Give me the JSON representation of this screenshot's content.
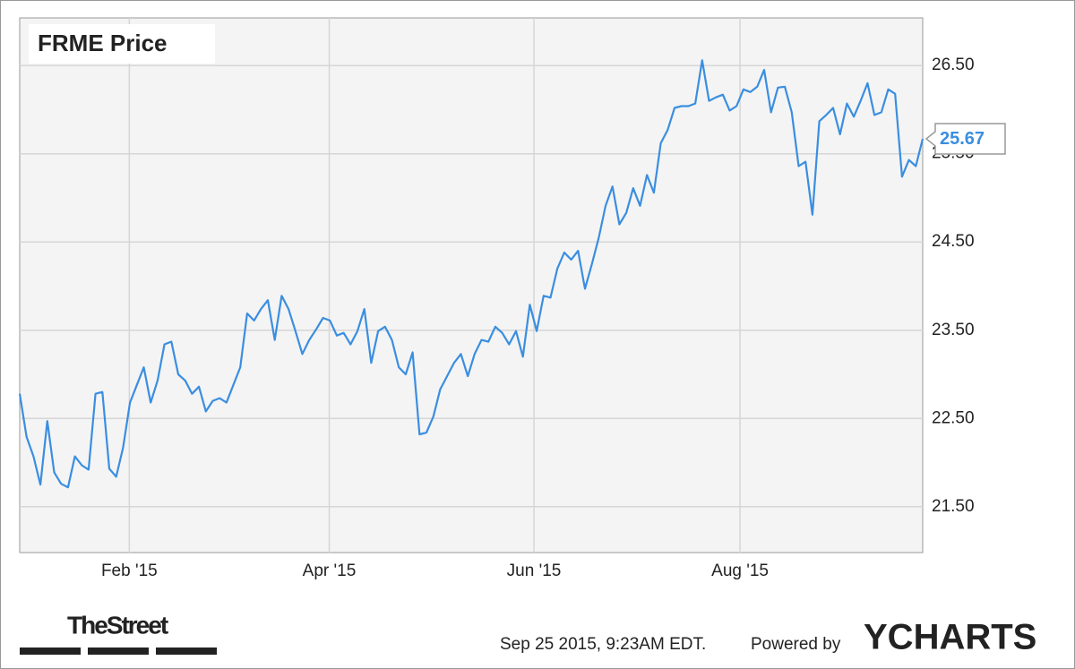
{
  "chart_data": {
    "type": "line",
    "title": "FRME Price",
    "color": "#3a8ee0",
    "grid": true,
    "values": [
      22.78,
      22.29,
      22.07,
      21.75,
      22.47,
      21.89,
      21.76,
      21.72,
      22.07,
      21.97,
      21.92,
      22.78,
      22.8,
      21.93,
      21.84,
      22.17,
      22.68,
      22.88,
      23.08,
      22.68,
      22.93,
      23.34,
      23.37,
      23.0,
      22.93,
      22.78,
      22.86,
      22.58,
      22.7,
      22.73,
      22.68,
      22.88,
      23.08,
      23.69,
      23.61,
      23.74,
      23.84,
      23.39,
      23.89,
      23.74,
      23.49,
      23.23,
      23.39,
      23.51,
      23.64,
      23.61,
      23.44,
      23.47,
      23.34,
      23.49,
      23.74,
      23.13,
      23.49,
      23.54,
      23.39,
      23.08,
      23.0,
      23.25,
      22.32,
      22.34,
      22.52,
      22.83,
      22.98,
      23.13,
      23.23,
      22.98,
      23.23,
      23.39,
      23.37,
      23.54,
      23.47,
      23.34,
      23.49,
      23.2,
      23.79,
      23.49,
      23.89,
      23.87,
      24.2,
      24.38,
      24.3,
      24.4,
      23.97,
      24.25,
      24.55,
      24.91,
      25.13,
      24.7,
      24.83,
      25.11,
      24.91,
      25.26,
      25.06,
      25.62,
      25.77,
      26.02,
      26.04,
      26.04,
      26.07,
      26.56,
      26.1,
      26.14,
      26.17,
      25.99,
      26.04,
      26.23,
      26.2,
      26.26,
      26.45,
      25.97,
      26.25,
      26.26,
      25.97,
      25.36,
      25.41,
      24.81,
      25.87,
      25.94,
      26.02,
      25.72,
      26.07,
      25.92,
      26.1,
      26.3,
      25.94,
      25.97,
      26.23,
      26.18,
      25.24,
      25.43,
      25.36,
      25.67
    ],
    "xlim": [
      0,
      131
    ],
    "xticks": [
      {
        "value": 15.9,
        "label": "Feb '15"
      },
      {
        "value": 44.9,
        "label": "Apr '15"
      },
      {
        "value": 74.6,
        "label": "Jun '15"
      },
      {
        "value": 104.5,
        "label": "Aug '15"
      }
    ],
    "ylim": [
      20.98,
      27.04
    ],
    "yticks": [
      {
        "value": 21.5,
        "label": "21.50"
      },
      {
        "value": 22.5,
        "label": "22.50"
      },
      {
        "value": 23.5,
        "label": "23.50"
      },
      {
        "value": 24.5,
        "label": "24.50"
      },
      {
        "value": 25.5,
        "label": "25.50"
      },
      {
        "value": 26.5,
        "label": "26.50"
      }
    ],
    "logo": "TheStreet",
    "timestamp": "Sep 25 2015, 9:23AM EDT.",
    "powered_by": "Powered by",
    "brand": "YCHARTS"
  }
}
